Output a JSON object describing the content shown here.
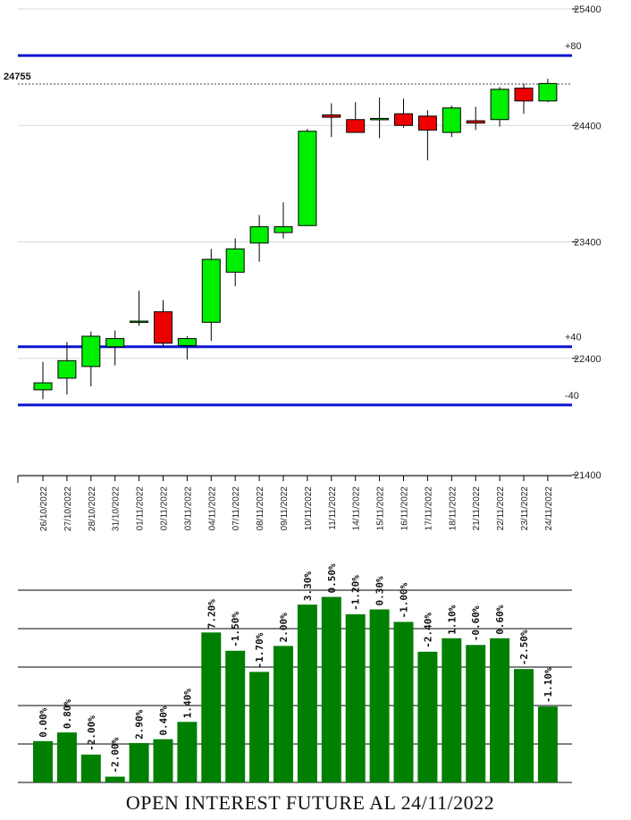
{
  "chart_data": [
    {
      "type": "candlestick",
      "y_ticks": [
        21400,
        22400,
        23400,
        24400,
        25400
      ],
      "ylim": [
        21400,
        25400
      ],
      "last_price_label": "24755",
      "last_price": 24755,
      "levels": [
        {
          "label": "+80",
          "value": 25000,
          "color": "#0a14d0"
        },
        {
          "label": "+40",
          "value": 22500,
          "color": "#0a14d0"
        },
        {
          "label": "-40",
          "value": 22000,
          "color": "#0a14d0"
        }
      ],
      "dates": [
        "26/10/2022",
        "27/10/2022",
        "28/10/2022",
        "31/10/2022",
        "01/11/2022",
        "02/11/2022",
        "03/11/2022",
        "04/11/2022",
        "07/11/2022",
        "08/11/2022",
        "09/11/2022",
        "10/11/2022",
        "11/11/2022",
        "14/11/2022",
        "15/11/2022",
        "16/11/2022",
        "17/11/2022",
        "18/11/2022",
        "21/11/2022",
        "22/11/2022",
        "23/11/2022",
        "24/11/2022"
      ],
      "candles": [
        {
          "open": 22130,
          "high": 22370,
          "low": 22050,
          "close": 22190
        },
        {
          "open": 22230,
          "high": 22540,
          "low": 22090,
          "close": 22380
        },
        {
          "open": 22330,
          "high": 22630,
          "low": 22160,
          "close": 22590
        },
        {
          "open": 22500,
          "high": 22640,
          "low": 22340,
          "close": 22570
        },
        {
          "open": 22720,
          "high": 22980,
          "low": 22680,
          "close": 22720
        },
        {
          "open": 22800,
          "high": 22900,
          "low": 22500,
          "close": 22530
        },
        {
          "open": 22510,
          "high": 22590,
          "low": 22390,
          "close": 22570
        },
        {
          "open": 22710,
          "high": 23340,
          "low": 22550,
          "close": 23250
        },
        {
          "open": 23140,
          "high": 23430,
          "low": 23020,
          "close": 23340
        },
        {
          "open": 23390,
          "high": 23630,
          "low": 23230,
          "close": 23530
        },
        {
          "open": 23480,
          "high": 23740,
          "low": 23430,
          "close": 23530
        },
        {
          "open": 23540,
          "high": 24370,
          "low": 23540,
          "close": 24350
        },
        {
          "open": 24490,
          "high": 24590,
          "low": 24300,
          "close": 24470
        },
        {
          "open": 24450,
          "high": 24600,
          "low": 24340,
          "close": 24340
        },
        {
          "open": 24460,
          "high": 24640,
          "low": 24290,
          "close": 24460
        },
        {
          "open": 24500,
          "high": 24630,
          "low": 24380,
          "close": 24400
        },
        {
          "open": 24480,
          "high": 24530,
          "low": 24100,
          "close": 24360
        },
        {
          "open": 24340,
          "high": 24570,
          "low": 24300,
          "close": 24550
        },
        {
          "open": 24440,
          "high": 24560,
          "low": 24360,
          "close": 24420
        },
        {
          "open": 24450,
          "high": 24730,
          "low": 24390,
          "close": 24710
        },
        {
          "open": 24720,
          "high": 24760,
          "low": 24500,
          "close": 24610
        },
        {
          "open": 24610,
          "high": 24800,
          "low": 24600,
          "close": 24760
        }
      ],
      "up_color": "#00ee00",
      "down_color": "#ee0000"
    },
    {
      "type": "bar",
      "title": "OPEN INTEREST FUTURE AL 24/11/2022",
      "bar_color": "#008000",
      "ylim": [
        0,
        100
      ],
      "gridlines": [
        20,
        40,
        60,
        80,
        100
      ],
      "labels": [
        "0.00%",
        "0.80%",
        "-2.00%",
        "-2.00%",
        "2.90%",
        "0.40%",
        "1.40%",
        "7.20%",
        "-1.50%",
        "-1.70%",
        "2.00%",
        "3.30%",
        "0.50%",
        "-1.20%",
        "0.30%",
        "-1.00%",
        "-2.40%",
        "1.10%",
        "-0.60%",
        "0.60%",
        "-2.50%",
        "-1.10%"
      ],
      "values": [
        21.5,
        26,
        14.5,
        3,
        20.5,
        22.5,
        31.5,
        78,
        68.5,
        57.5,
        71,
        92.5,
        96.5,
        87.5,
        90,
        83.5,
        68,
        75,
        71.5,
        75,
        59,
        39.5
      ]
    }
  ]
}
